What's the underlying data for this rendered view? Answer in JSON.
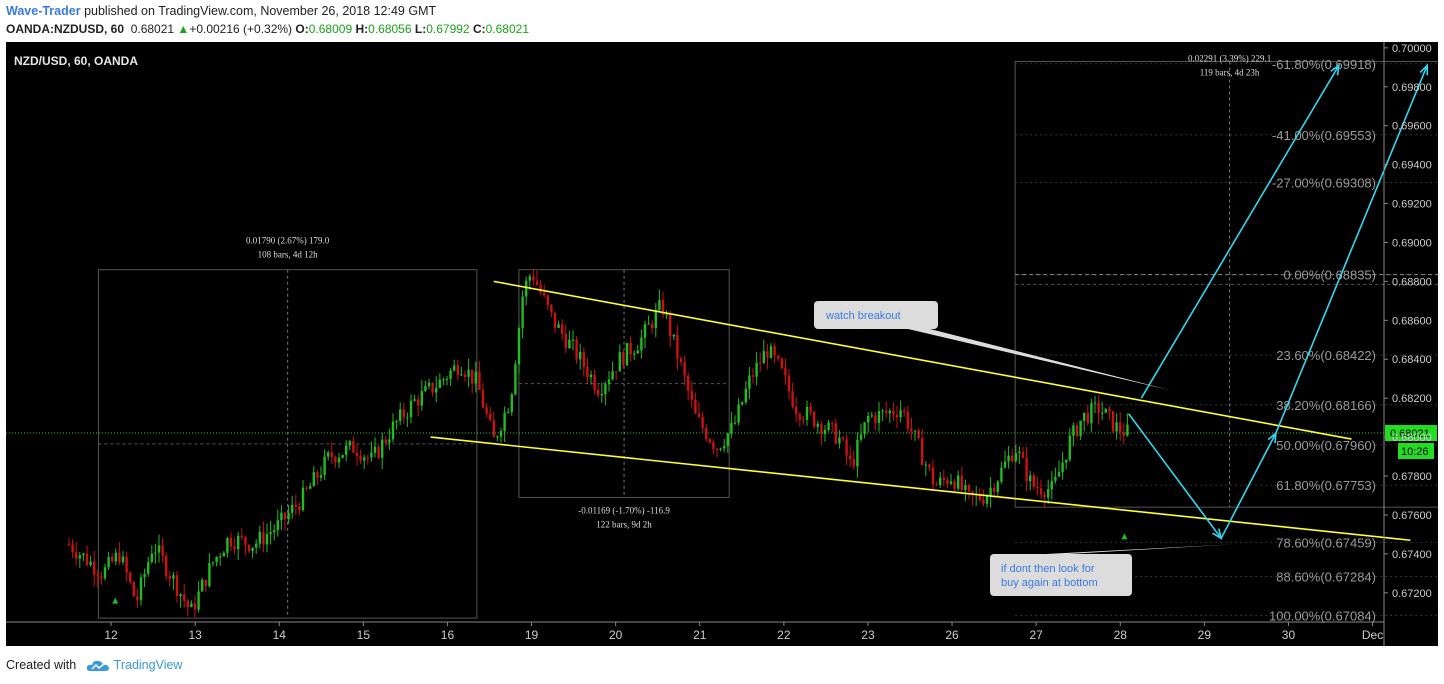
{
  "header": {
    "author": "Wave-Trader",
    "published_text": "published on TradingView.com, November 26, 2018 12:49 GMT",
    "symbol": "OANDA:NZDUSD, 60",
    "last": "0.68021",
    "change_arrow": "▲",
    "change": "+0.00216 (+0.32%)",
    "o_label": "O:",
    "o_value": "0.68009",
    "h_label": "H:",
    "h_value": "0.68056",
    "l_label": "L:",
    "l_value": "0.67992",
    "c_label": "C:",
    "c_value": "0.68021"
  },
  "footer": {
    "created_with": "Created with",
    "brand": "TradingView",
    "logo_icon": "tradingview-cloud-icon"
  },
  "colors": {
    "background": "#000000",
    "up": "#22bb22",
    "down": "#cc1111",
    "trendline": "#ffff33",
    "arrow": "#33d8f0",
    "price_line": "#22cc22",
    "axis_text": "#cccccc",
    "fib_text": "#999999"
  },
  "chart_data": {
    "type": "candlestick",
    "title": "NZD/USD, 60, OANDA",
    "ylim": [
      0.6705,
      0.7003
    ],
    "y_ticks": [
      0.67,
      0.672,
      0.674,
      0.676,
      0.678,
      0.68,
      0.682,
      0.684,
      0.686,
      0.688,
      0.69,
      0.692,
      0.694,
      0.696,
      0.698,
      0.7
    ],
    "y_tick_labels": [
      "0.67200",
      "0.67400",
      "0.67600",
      "0.67800",
      "0.68000",
      "0.68200",
      "0.68400",
      "0.68600",
      "0.68800",
      "0.69000",
      "0.69200",
      "0.69400",
      "0.69600",
      "0.69800",
      "0.70000"
    ],
    "x_tick_labels": [
      "12",
      "13",
      "14",
      "15",
      "16",
      "19",
      "20",
      "21",
      "22",
      "23",
      "26",
      "27",
      "28",
      "29",
      "30",
      "Dec"
    ],
    "current_price": {
      "value": 0.68021,
      "label": "0.68021",
      "countdown": "10:26"
    },
    "path_points": [
      [
        11.5,
        0.6745
      ],
      [
        11.9,
        0.673
      ],
      [
        12.1,
        0.674
      ],
      [
        12.3,
        0.6715
      ],
      [
        12.5,
        0.6745
      ],
      [
        12.7,
        0.673
      ],
      [
        12.95,
        0.671
      ],
      [
        13.2,
        0.6735
      ],
      [
        13.4,
        0.6748
      ],
      [
        13.7,
        0.6745
      ],
      [
        14.0,
        0.6755
      ],
      [
        14.3,
        0.677
      ],
      [
        14.6,
        0.679
      ],
      [
        14.9,
        0.6795
      ],
      [
        15.1,
        0.6788
      ],
      [
        15.35,
        0.6805
      ],
      [
        15.6,
        0.6818
      ],
      [
        15.9,
        0.6828
      ],
      [
        16.15,
        0.6838
      ],
      [
        16.35,
        0.6828
      ],
      [
        16.55,
        0.6798
      ],
      [
        16.75,
        0.682
      ],
      [
        16.9,
        0.6875
      ],
      [
        17.0,
        0.6885
      ],
      [
        17.25,
        0.686
      ],
      [
        17.5,
        0.6845
      ],
      [
        17.8,
        0.6825
      ],
      [
        18.05,
        0.684
      ],
      [
        18.3,
        0.685
      ],
      [
        18.55,
        0.6868
      ],
      [
        18.75,
        0.684
      ],
      [
        18.95,
        0.681
      ],
      [
        19.2,
        0.6795
      ],
      [
        19.4,
        0.6805
      ],
      [
        19.6,
        0.683
      ],
      [
        19.8,
        0.6845
      ],
      [
        19.95,
        0.6835
      ],
      [
        20.15,
        0.6815
      ],
      [
        20.4,
        0.6808
      ],
      [
        20.65,
        0.68
      ],
      [
        20.8,
        0.6785
      ],
      [
        21.0,
        0.681
      ],
      [
        21.2,
        0.6812
      ],
      [
        21.4,
        0.6815
      ],
      [
        21.65,
        0.679
      ],
      [
        21.8,
        0.6775
      ],
      [
        22.0,
        0.678
      ],
      [
        22.2,
        0.6768
      ],
      [
        22.4,
        0.677
      ],
      [
        22.55,
        0.678
      ],
      [
        22.75,
        0.6795
      ],
      [
        22.95,
        0.6775
      ],
      [
        23.2,
        0.6773
      ],
      [
        23.4,
        0.6798
      ],
      [
        23.55,
        0.681
      ],
      [
        23.75,
        0.6815
      ],
      [
        23.95,
        0.6805
      ],
      [
        24.1,
        0.6802
      ]
    ],
    "projection": [
      [
        24.1,
        0.6812
      ],
      [
        25.2,
        0.6748
      ],
      [
        25.85,
        0.6802
      ],
      [
        27.65,
        0.6991
      ]
    ],
    "projection_2": [
      [
        24.25,
        0.682
      ],
      [
        26.6,
        0.6991
      ]
    ],
    "trendlines": [
      {
        "from": [
          16.55,
          0.688
        ],
        "to": [
          26.75,
          0.6799
        ]
      },
      {
        "from": [
          15.8,
          0.68
        ],
        "to": [
          27.45,
          0.6747
        ]
      }
    ],
    "fib_levels": [
      {
        "label": "-61.80%(0.69918)",
        "value": 0.69918
      },
      {
        "label": "-41.00%(0.69553)",
        "value": 0.69553
      },
      {
        "label": "-27.00%(0.69308)",
        "value": 0.69308
      },
      {
        "label": "0.00%(0.68835)",
        "value": 0.68835
      },
      {
        "label": "23.60%(0.68422)",
        "value": 0.68422
      },
      {
        "label": "38.20%(0.68166)",
        "value": 0.68166
      },
      {
        "label": "50.00%(0.67960)",
        "value": 0.6796
      },
      {
        "label": "61.80%(0.67753)",
        "value": 0.67753
      },
      {
        "label": "78.60%(0.67459)",
        "value": 0.67459
      },
      {
        "label": "88.60%(0.67284)",
        "value": 0.67284
      },
      {
        "label": "100.00%(0.67084)",
        "value": 0.67084
      }
    ],
    "measurements": [
      {
        "line1": "0.01790 (2.67%) 179.0",
        "line2": "108 bars, 4d 12h",
        "x_from": 11.85,
        "x_to": 16.35,
        "y_from": 0.6707,
        "y_to": 0.6886
      },
      {
        "line1": "-0.01169 (-1.70%) -116.9",
        "line2": "122 bars, 9d 2h",
        "x_from": 16.85,
        "x_to": 19.35,
        "y_from": 0.6769,
        "y_to": 0.6886
      },
      {
        "line1": "0.02291 (3.39%) 229.1",
        "line2": "119 bars, 4d 23h",
        "x_from": 22.75,
        "x_to": 27.85,
        "y_from": 0.6764,
        "y_to": 0.6993
      }
    ],
    "callouts": [
      {
        "text": "watch breakout",
        "anchor": [
          24.55,
          0.6822
        ]
      },
      {
        "text": "if dont then look for buy again at bottom",
        "anchor": [
          25.35,
          0.6746
        ]
      }
    ]
  }
}
